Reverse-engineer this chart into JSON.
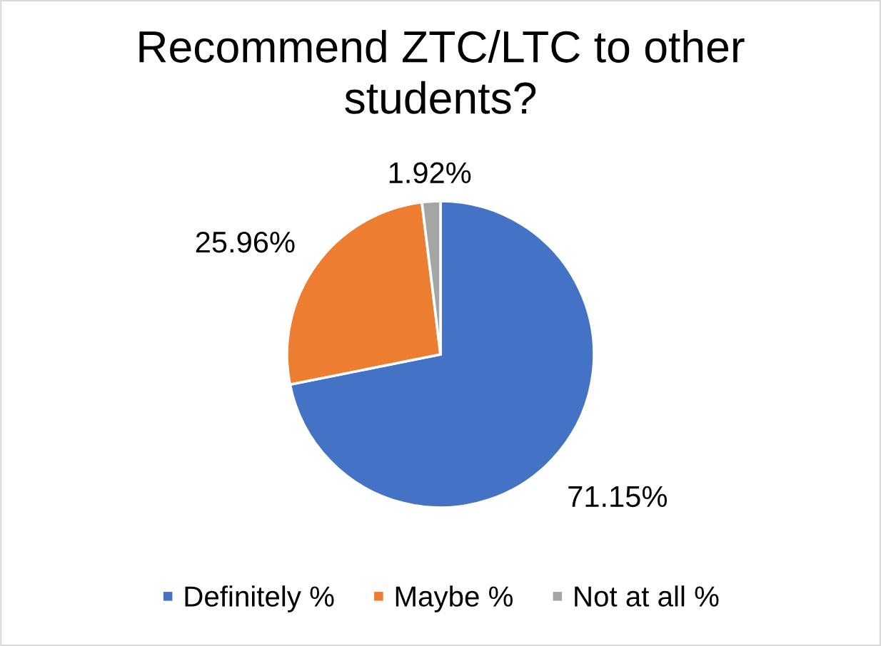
{
  "chart_data": {
    "type": "pie",
    "title": "Recommend ZTC/LTC to other students?",
    "categories": [
      "Definitely %",
      "Maybe %",
      "Not at all %"
    ],
    "values": [
      71.15,
      25.96,
      1.92
    ],
    "colors": [
      "#4472c4",
      "#ed7d31",
      "#a5a5a5"
    ],
    "value_labels": [
      "71.15%",
      "25.96%",
      "1.92%"
    ],
    "legend": "bottom"
  }
}
